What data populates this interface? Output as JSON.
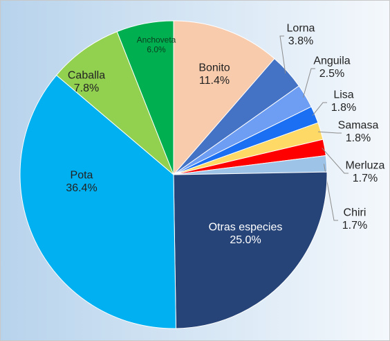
{
  "chart_data": {
    "type": "pie",
    "categories": [
      "Bonito",
      "Lorna",
      "Anguila",
      "Lisa",
      "Samasa",
      "Merluza",
      "Chiri",
      "Otras especies",
      "Pota",
      "Caballa",
      "Anchoveta"
    ],
    "values": [
      11.4,
      3.8,
      2.5,
      1.8,
      1.8,
      1.7,
      1.7,
      25.0,
      36.4,
      7.8,
      6.0
    ],
    "value_labels": [
      "11.4%",
      "3.8%",
      "2.5%",
      "1.8%",
      "1.8%",
      "1.7%",
      "1.7%",
      "25.0%",
      "36.4%",
      "7.8%",
      "6.0%"
    ],
    "colors": [
      "#f8cbad",
      "#4472c4",
      "#6d9ef3",
      "#1a6ff2",
      "#ffd966",
      "#ff0000",
      "#9dc3e6",
      "#264478",
      "#00b0f0",
      "#92d050",
      "#00b050"
    ]
  }
}
